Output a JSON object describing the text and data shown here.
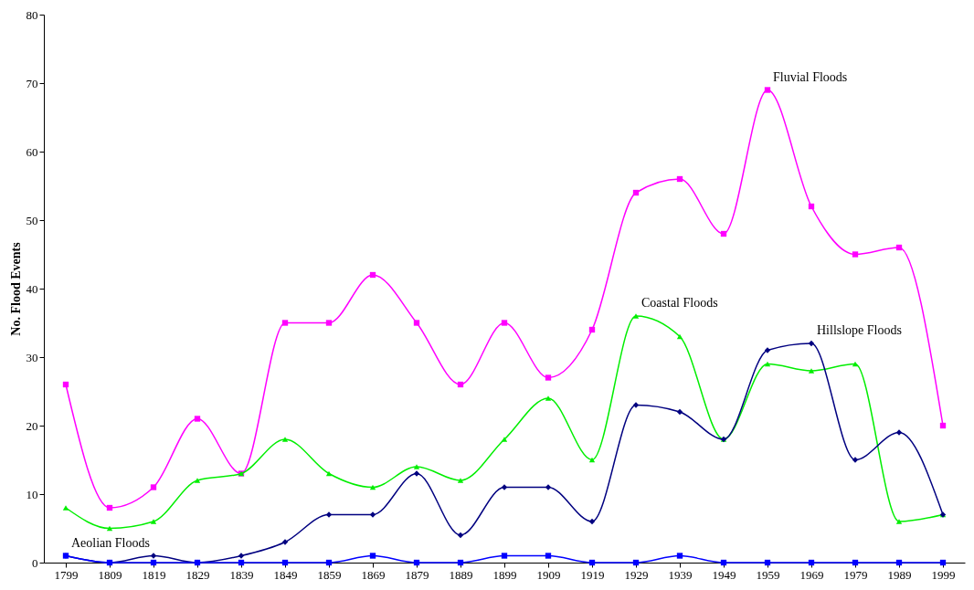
{
  "chart_data": {
    "type": "line",
    "ylabel": "No. Flood Events",
    "categories": [
      "1799",
      "1809",
      "1819",
      "1829",
      "1839",
      "1849",
      "1859",
      "1869",
      "1879",
      "1889",
      "1899",
      "1909",
      "1919",
      "1929",
      "1939",
      "1949",
      "1959",
      "1969",
      "1979",
      "1989",
      "1999"
    ],
    "series": [
      {
        "name": "Fluvial Floods",
        "color": "#ff00ff",
        "marker": "square",
        "values": [
          26,
          8,
          11,
          21,
          13,
          35,
          35,
          42,
          35,
          26,
          35,
          27,
          34,
          54,
          56,
          48,
          69,
          52,
          45,
          46,
          20
        ]
      },
      {
        "name": "Coastal Floods",
        "color": "#00ee00",
        "marker": "triangle",
        "values": [
          8,
          5,
          6,
          12,
          13,
          18,
          13,
          11,
          14,
          12,
          18,
          24,
          15,
          36,
          33,
          18,
          29,
          28,
          29,
          6,
          7
        ]
      },
      {
        "name": "Hillslope Floods",
        "color": "#000080",
        "marker": "diamond",
        "values": [
          1,
          0,
          1,
          0,
          1,
          3,
          7,
          7,
          13,
          4,
          11,
          11,
          6,
          23,
          22,
          18,
          31,
          32,
          15,
          19,
          7
        ]
      },
      {
        "name": "Aeolian Floods",
        "color": "#0000ff",
        "marker": "square",
        "values": [
          1,
          0,
          0,
          0,
          0,
          0,
          0,
          1,
          0,
          0,
          1,
          1,
          0,
          0,
          1,
          0,
          0,
          0,
          0,
          0,
          0
        ]
      }
    ],
    "ylim": [
      0,
      80
    ],
    "yticks": [
      0,
      10,
      20,
      30,
      40,
      50,
      60,
      70,
      80
    ],
    "grid": false
  }
}
